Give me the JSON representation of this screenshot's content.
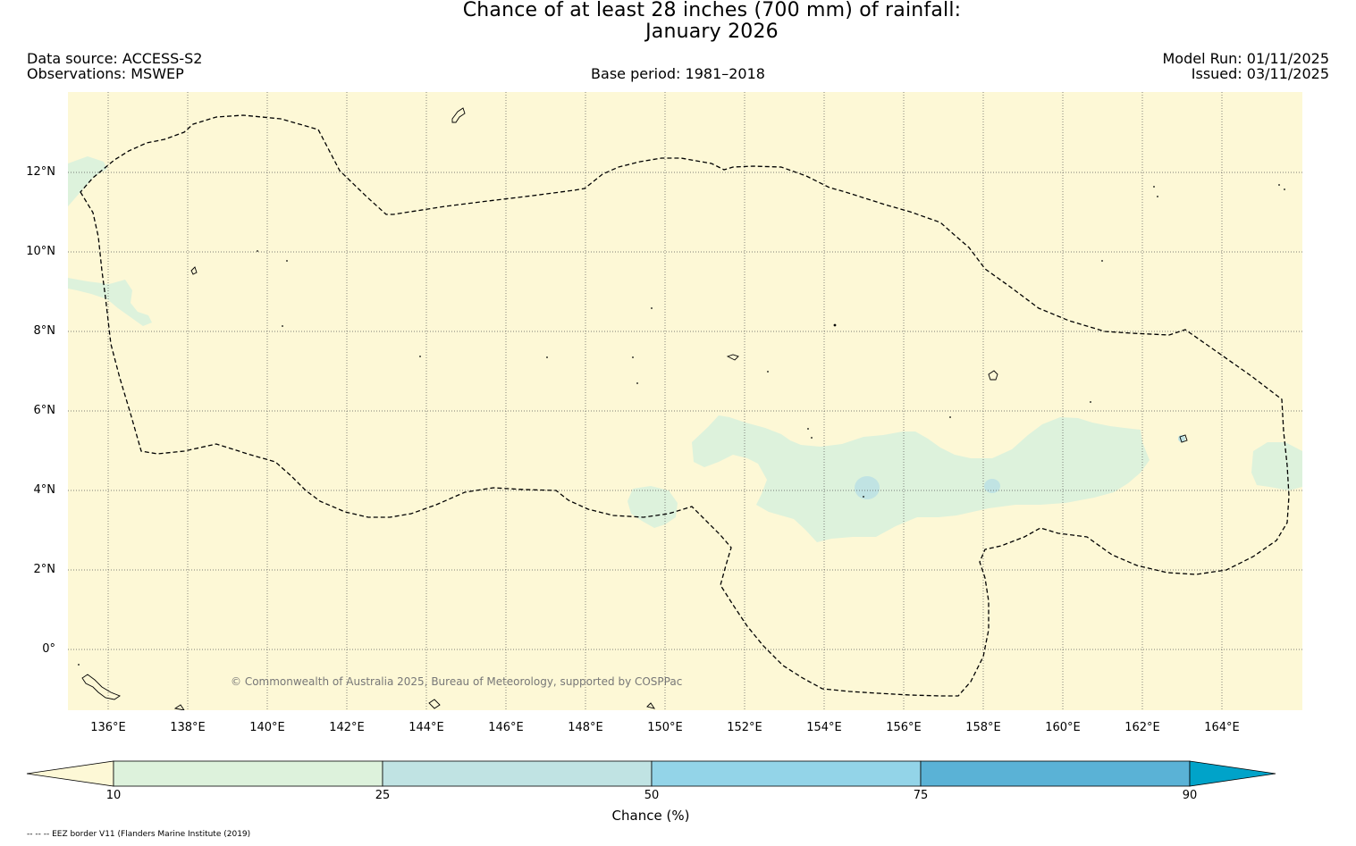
{
  "title": {
    "line1": "Chance of at least 28 inches (700  mm) of rainfall:",
    "line2": "January 2026"
  },
  "meta": {
    "data_source": "Data source: ACCESS-S2",
    "observations": "Observations: MSWEP",
    "base_period": "Base period: 1981–2018",
    "model_run": "Model Run: 01/11/2025",
    "issued": "Issued: 03/11/2025"
  },
  "map": {
    "copyright": "© Commonwealth of Australia 2025, Bureau of Meteorology, supported by COSPPac",
    "latitude_labels": [
      "12°N",
      "10°N",
      "8°N",
      "6°N",
      "4°N",
      "2°N",
      "0°"
    ],
    "longitude_labels": [
      "136°E",
      "138°E",
      "140°E",
      "142°E",
      "144°E",
      "146°E",
      "148°E",
      "150°E",
      "152°E",
      "154°E",
      "156°E",
      "158°E",
      "160°E",
      "162°E",
      "164°E"
    ],
    "colors": {
      "background": "#fdf8d6",
      "band_10_25": "#ddf2dc",
      "band_25_50": "#c0e3e3",
      "band_50_75": "#93d4e8",
      "band_75_90": "#5ab2d6",
      "band_90_plus": "#00a3c9"
    }
  },
  "colorbar": {
    "title": "Chance (%)",
    "ticks": [
      "10",
      "25",
      "50",
      "75",
      "90"
    ]
  },
  "footnote": "-- -- -- EEZ border V11 (Flanders Marine Institute (2019)"
}
